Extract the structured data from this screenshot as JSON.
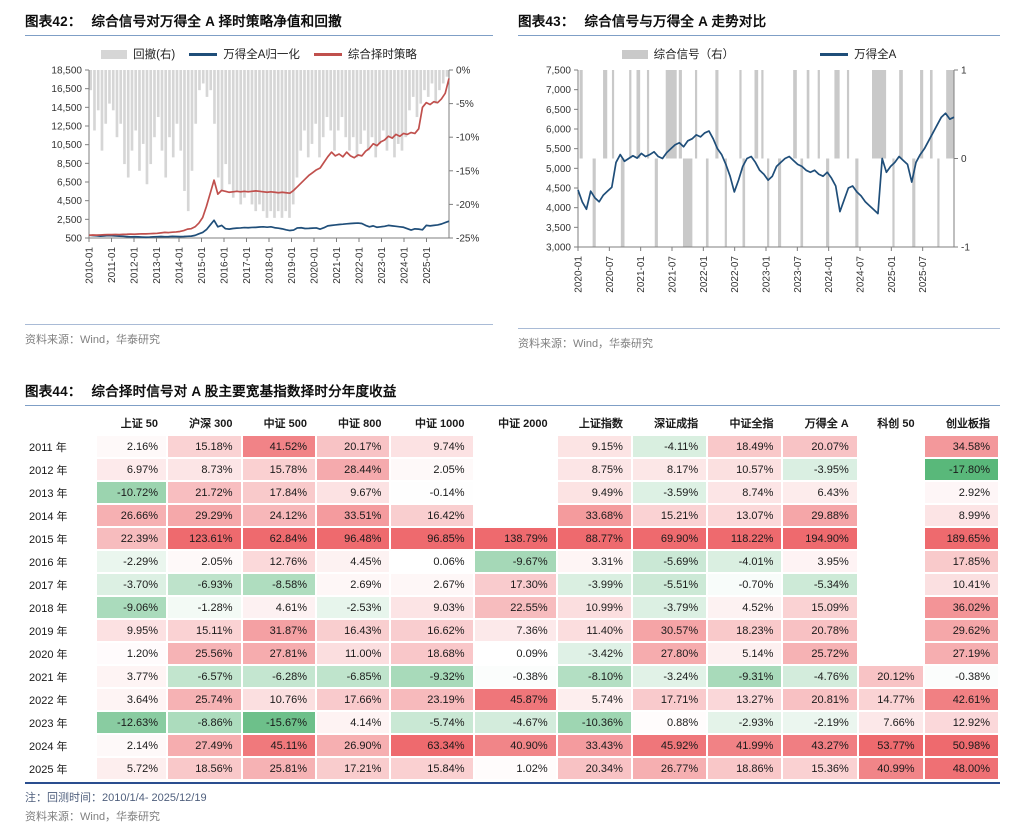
{
  "page": {
    "sources_label": "资料来源：Wind，华泰研究"
  },
  "colors": {
    "drawdown_gray": "#d6d6d6",
    "signal_gray": "#c9c9c9",
    "navy_line": "#1f4e79",
    "red_line": "#c0504d",
    "title_rule": "#7f9fc6",
    "heat_red": "#ee6a6e",
    "heat_green": "#57b779"
  },
  "chart_data": [
    {
      "type": "line",
      "fig_label": "图表42：",
      "title": "综合信号对万得全 A 择时策略净值和回撤",
      "source": "资料来源：Wind，华泰研究",
      "legend_position": "top",
      "x_start": "2010-01",
      "x_months": 191,
      "x_ticks": [
        "2010-01",
        "2011-01",
        "2012-01",
        "2013-01",
        "2014-01",
        "2015-01",
        "2016-01",
        "2017-01",
        "2018-01",
        "2019-01",
        "2020-01",
        "2021-01",
        "2022-01",
        "2023-01",
        "2024-01",
        "2025-01"
      ],
      "left_axis": {
        "min": 500,
        "max": 18500,
        "ticks": [
          18500,
          16500,
          14500,
          12500,
          10500,
          8500,
          6500,
          4500,
          2500,
          500
        ]
      },
      "right_axis": {
        "min": -25,
        "max": 0,
        "ticks": [
          0,
          -5,
          -10,
          -15,
          -20,
          -25
        ],
        "suffix": "%"
      },
      "series": [
        {
          "name": "回撤(右)",
          "type": "bars",
          "axis": "right",
          "color": "#d6d6d6",
          "values": [
            -3,
            -9,
            -6,
            -12,
            -8,
            -5,
            -6,
            -10,
            -8,
            -14,
            -16,
            -12,
            -9,
            -15,
            -11,
            -17,
            -14,
            -10,
            -7,
            -12,
            -16,
            -10,
            -13,
            -8,
            -12,
            -18,
            -21,
            -15,
            -8,
            -3,
            -2,
            -4,
            -3,
            -8,
            -16,
            -18,
            -14,
            -17,
            -19,
            -18,
            -20,
            -19,
            -18,
            -20,
            -21,
            -20,
            -21,
            -22,
            -21,
            -22,
            -21,
            -22,
            -21,
            -22,
            -20,
            -16,
            -12,
            -9,
            -13,
            -11,
            -8,
            -13,
            -10,
            -7,
            -9,
            -12,
            -9,
            -7,
            -10,
            -12,
            -10,
            -13,
            -11,
            -9,
            -12,
            -10,
            -13,
            -11,
            -9,
            -12,
            -10,
            -13,
            -11,
            -12,
            -10,
            -6,
            -4,
            -7,
            -5,
            -3,
            -4,
            -2,
            -5,
            -3,
            -2,
            -1
          ]
        },
        {
          "name": "万得全A归一化",
          "type": "line",
          "axis": "left",
          "color": "#1f4e79",
          "values": [
            800,
            760,
            740,
            700,
            730,
            760,
            750,
            720,
            700,
            680,
            650,
            630,
            640,
            620,
            600,
            580,
            600,
            630,
            640,
            660,
            640,
            650,
            670,
            660,
            650,
            660,
            680,
            700,
            780,
            950,
            1100,
            1400,
            1900,
            2400,
            1700,
            1850,
            1500,
            1450,
            1520,
            1560,
            1580,
            1620,
            1600,
            1630,
            1640,
            1680,
            1700,
            1660,
            1700,
            1600,
            1550,
            1480,
            1380,
            1300,
            1350,
            1580,
            1600,
            1520,
            1530,
            1560,
            1580,
            1450,
            1600,
            1800,
            1850,
            1900,
            1950,
            1980,
            2020,
            2050,
            2080,
            2100,
            2050,
            1850,
            1700,
            1800,
            1650,
            1700,
            1750,
            1850,
            1800,
            1750,
            1700,
            1650,
            1500,
            1350,
            1480,
            1450,
            1380,
            1850,
            1800,
            1850,
            1900,
            2000,
            2150,
            2300
          ]
        },
        {
          "name": "综合择时策略",
          "type": "line",
          "axis": "left",
          "color": "#c0504d",
          "values": [
            800,
            820,
            810,
            830,
            850,
            870,
            860,
            880,
            870,
            890,
            900,
            920,
            910,
            930,
            950,
            940,
            960,
            980,
            1000,
            1050,
            1100,
            1080,
            1120,
            1150,
            1200,
            1300,
            1450,
            1500,
            1700,
            2100,
            2700,
            3900,
            5300,
            6700,
            5200,
            5600,
            5500,
            5400,
            5450,
            5500,
            5450,
            5500,
            5450,
            5500,
            5550,
            5500,
            5450,
            5400,
            5450,
            5400,
            5350,
            5400,
            5350,
            5300,
            5600,
            6000,
            6400,
            6800,
            7200,
            7500,
            7800,
            8000,
            8600,
            9200,
            9700,
            9300,
            9500,
            9200,
            9700,
            9300,
            9100,
            9400,
            9300,
            9800,
            10100,
            10600,
            10400,
            10800,
            11000,
            11400,
            11200,
            11600,
            11400,
            11700,
            11600,
            11800,
            11700,
            12200,
            14500,
            15000,
            14800,
            15100,
            15000,
            15400,
            16000,
            17600
          ]
        }
      ]
    },
    {
      "type": "line",
      "fig_label": "图表43：",
      "title": "综合信号与万得全 A 走势对比",
      "source": "资料来源：Wind，华泰研究",
      "legend_position": "top",
      "x_start": "2020-01",
      "x_months": 72,
      "x_ticks": [
        "2020-01",
        "2020-07",
        "2021-01",
        "2021-07",
        "2022-01",
        "2022-07",
        "2023-01",
        "2023-07",
        "2024-01",
        "2024-07",
        "2025-01",
        "2025-07"
      ],
      "left_axis": {
        "min": 3000,
        "max": 7500,
        "ticks": [
          7500,
          7000,
          6500,
          6000,
          5500,
          5000,
          4500,
          4000,
          3500,
          3000
        ]
      },
      "right_axis": {
        "min": -1,
        "max": 1,
        "ticks": [
          1,
          0,
          -1
        ],
        "suffix": ""
      },
      "series": [
        {
          "name": "综合信号（右）",
          "type": "signal-bars",
          "axis": "right",
          "color": "#c9c9c9",
          "segments": [
            [
              0.3,
              0.9,
              1
            ],
            [
              2.8,
              3.4,
              -1
            ],
            [
              4.8,
              5.6,
              1
            ],
            [
              6.5,
              6.8,
              1
            ],
            [
              8.2,
              8.9,
              -1
            ],
            [
              9.8,
              10.1,
              1
            ],
            [
              11.2,
              11.9,
              1
            ],
            [
              13.2,
              13.5,
              1
            ],
            [
              14.7,
              15.3,
              -1
            ],
            [
              16.8,
              18.9,
              1
            ],
            [
              19.3,
              19.9,
              1
            ],
            [
              20.1,
              21.9,
              -1
            ],
            [
              22.4,
              22.8,
              1
            ],
            [
              24.5,
              25.0,
              -1
            ],
            [
              26.3,
              26.9,
              1
            ],
            [
              28.1,
              28.5,
              -1
            ],
            [
              30.9,
              31.3,
              1
            ],
            [
              31.5,
              32.0,
              -1
            ],
            [
              33.8,
              34.5,
              1
            ],
            [
              35.1,
              35.4,
              1
            ],
            [
              36.2,
              36.6,
              -1
            ],
            [
              38.3,
              38.9,
              -1
            ],
            [
              41.2,
              41.9,
              1
            ],
            [
              42.6,
              43.1,
              -1
            ],
            [
              43.8,
              44.3,
              1
            ],
            [
              45.9,
              46.3,
              1
            ],
            [
              47.5,
              48.1,
              -1
            ],
            [
              49.1,
              50.1,
              1
            ],
            [
              51.5,
              51.9,
              1
            ],
            [
              53.1,
              53.7,
              -1
            ],
            [
              56.3,
              59.0,
              1
            ],
            [
              60.2,
              60.6,
              -1
            ],
            [
              61.5,
              62.2,
              1
            ],
            [
              64.0,
              64.6,
              -1
            ],
            [
              65.5,
              66.1,
              1
            ],
            [
              67.4,
              67.9,
              1
            ],
            [
              68.8,
              69.1,
              -1
            ],
            [
              70.5,
              72.0,
              1
            ]
          ]
        },
        {
          "name": "万得全A",
          "type": "line",
          "axis": "left",
          "color": "#1f4e79",
          "values": [
            4450,
            4150,
            3960,
            4420,
            4250,
            4150,
            4320,
            4420,
            4520,
            5150,
            5350,
            5180,
            5250,
            5320,
            5260,
            5380,
            5300,
            5350,
            5420,
            5300,
            5250,
            5400,
            5500,
            5600,
            5650,
            5550,
            5700,
            5750,
            5850,
            5800,
            5900,
            5950,
            5750,
            5500,
            5350,
            5100,
            4800,
            4400,
            4700,
            5050,
            5250,
            5300,
            5150,
            4950,
            4850,
            4700,
            4800,
            5050,
            5150,
            5250,
            5300,
            5200,
            5100,
            5050,
            4950,
            4900,
            4950,
            4850,
            4800,
            4900,
            4750,
            4550,
            3900,
            4200,
            4500,
            4550,
            4400,
            4300,
            4150,
            4050,
            3950,
            3850,
            5250,
            4900,
            5050,
            5150,
            5300,
            5200,
            5100,
            4650,
            5150,
            5350,
            5500,
            5700,
            5900,
            6100,
            6300,
            6400,
            6250,
            6300
          ]
        }
      ]
    },
    {
      "type": "table",
      "fig_label": "图表44：",
      "title": "综合择时信号对 A 股主要宽基指数择时分年度收益",
      "columns": [
        "上证 50",
        "沪深 300",
        "中证 500",
        "中证 800",
        "中证 1000",
        "中证 2000",
        "上证指数",
        "深证成指",
        "中证全指",
        "万得全 A",
        "科创 50",
        "创业板指"
      ],
      "rows": [
        {
          "year": "2011 年",
          "values": [
            2.16,
            15.18,
            41.52,
            20.17,
            9.74,
            null,
            9.15,
            -4.11,
            18.49,
            20.07,
            null,
            34.58
          ]
        },
        {
          "year": "2012 年",
          "values": [
            6.97,
            8.73,
            15.78,
            28.44,
            2.05,
            null,
            8.75,
            8.17,
            10.57,
            -3.95,
            null,
            -17.8
          ]
        },
        {
          "year": "2013 年",
          "values": [
            -10.72,
            21.72,
            17.84,
            9.67,
            -0.14,
            null,
            9.49,
            -3.59,
            8.74,
            6.43,
            null,
            2.92
          ]
        },
        {
          "year": "2014 年",
          "values": [
            26.66,
            29.29,
            24.12,
            33.51,
            16.42,
            null,
            33.68,
            15.21,
            13.07,
            29.88,
            null,
            8.99
          ]
        },
        {
          "year": "2015 年",
          "values": [
            22.39,
            123.61,
            62.84,
            96.48,
            96.85,
            138.79,
            88.77,
            69.9,
            118.22,
            194.9,
            null,
            189.65
          ]
        },
        {
          "year": "2016 年",
          "values": [
            -2.29,
            2.05,
            12.76,
            4.45,
            0.06,
            -9.67,
            3.31,
            -5.69,
            -4.01,
            3.95,
            null,
            17.85
          ]
        },
        {
          "year": "2017 年",
          "values": [
            -3.7,
            -6.93,
            -8.58,
            2.69,
            2.67,
            17.3,
            -3.99,
            -5.51,
            -0.7,
            -5.34,
            null,
            10.41
          ]
        },
        {
          "year": "2018 年",
          "values": [
            -9.06,
            -1.28,
            4.61,
            -2.53,
            9.03,
            22.55,
            10.99,
            -3.79,
            4.52,
            15.09,
            null,
            36.02
          ]
        },
        {
          "year": "2019 年",
          "values": [
            9.95,
            15.11,
            31.87,
            16.43,
            16.62,
            7.36,
            11.4,
            30.57,
            18.23,
            20.78,
            null,
            29.62
          ]
        },
        {
          "year": "2020 年",
          "values": [
            1.2,
            25.56,
            27.81,
            11.0,
            18.68,
            0.09,
            -3.42,
            27.8,
            5.14,
            25.72,
            null,
            27.19
          ]
        },
        {
          "year": "2021 年",
          "values": [
            3.77,
            -6.57,
            -6.28,
            -6.85,
            -9.32,
            -0.38,
            -8.1,
            -3.24,
            -9.31,
            -4.76,
            20.12,
            -0.38
          ]
        },
        {
          "year": "2022 年",
          "values": [
            3.64,
            25.74,
            10.76,
            17.66,
            23.19,
            45.87,
            5.74,
            17.71,
            13.27,
            20.81,
            14.77,
            42.61
          ]
        },
        {
          "year": "2023 年",
          "values": [
            -12.63,
            -8.86,
            -15.67,
            4.14,
            -5.74,
            -4.67,
            -10.36,
            0.88,
            -2.93,
            -2.19,
            7.66,
            12.92
          ]
        },
        {
          "year": "2024 年",
          "values": [
            2.14,
            27.49,
            45.11,
            26.9,
            63.34,
            40.9,
            33.43,
            45.92,
            41.99,
            43.27,
            53.77,
            50.98
          ]
        },
        {
          "year": "2025 年",
          "values": [
            5.72,
            18.56,
            25.81,
            17.21,
            15.84,
            1.02,
            20.34,
            26.77,
            18.86,
            15.36,
            40.99,
            48.0
          ]
        }
      ],
      "note": "注：回测时间：2010/1/4- 2025/12/19",
      "source": "资料来源：Wind，华泰研究",
      "heat": {
        "positive_clip": 50,
        "negative_clip": 18
      }
    }
  ]
}
